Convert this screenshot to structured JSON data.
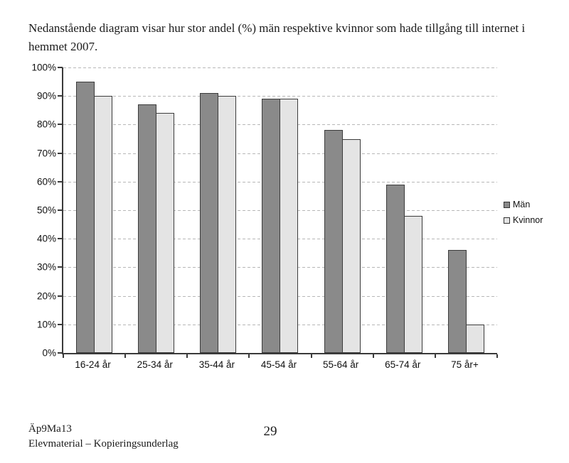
{
  "page": {
    "title": "Nedanstående diagram visar hur stor andel (%) män respektive kvinnor som hade tillgång till internet i hemmet 2007."
  },
  "chart_data": {
    "type": "bar",
    "title": "",
    "xlabel": "",
    "ylabel": "",
    "categories": [
      "16-24 år",
      "25-34 år",
      "35-44 år",
      "45-54 år",
      "55-64 år",
      "65-74 år",
      "75 år+"
    ],
    "series": [
      {
        "key": "man",
        "name": "Män",
        "color": "#8a8a8a",
        "values": [
          95,
          87,
          91,
          89,
          78,
          59,
          36
        ]
      },
      {
        "key": "kvinnor",
        "name": "Kvinnor",
        "color": "#e4e4e4",
        "values": [
          90,
          84,
          90,
          89,
          75,
          48,
          10
        ]
      }
    ],
    "ylim": [
      0,
      100
    ],
    "y_ticks": [
      {
        "value": 0,
        "label": "0%"
      },
      {
        "value": 10,
        "label": "10%"
      },
      {
        "value": 20,
        "label": "20%"
      },
      {
        "value": 30,
        "label": "30%"
      },
      {
        "value": 40,
        "label": "40%"
      },
      {
        "value": 50,
        "label": "50%"
      },
      {
        "value": 60,
        "label": "60%"
      },
      {
        "value": 70,
        "label": "70%"
      },
      {
        "value": 80,
        "label": "80%"
      },
      {
        "value": 90,
        "label": "90%"
      },
      {
        "value": 100,
        "label": "100%"
      }
    ],
    "grid": "horizontal-dashed",
    "legend_position": "right",
    "bar_border_color": "#3c3c3c",
    "axis_color": "#3a3a3a",
    "gridline_color": "#b7b7b7"
  },
  "footer": {
    "doc_code": "Äp9Ma13",
    "doc_subtitle": "Elevmaterial – Kopieringsunderlag",
    "page_number": "29"
  }
}
